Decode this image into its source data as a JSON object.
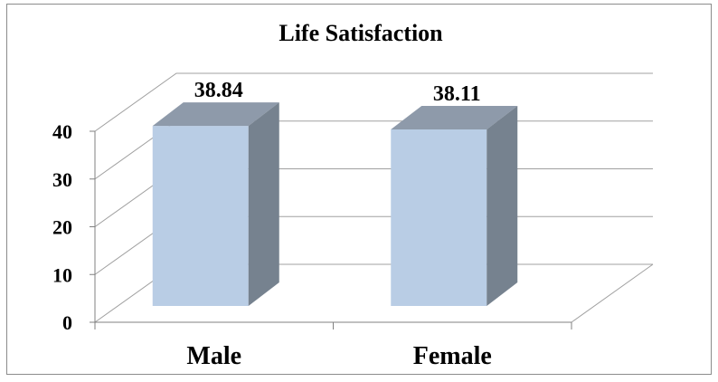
{
  "chart_data": {
    "type": "bar",
    "title": "Life Satisfaction",
    "categories": [
      "Male",
      "Female"
    ],
    "values": [
      38.84,
      38.11
    ],
    "data_labels": [
      "38.84",
      "38.11"
    ],
    "ylim": [
      0,
      40
    ],
    "yticks": [
      "0",
      "10",
      "20",
      "30",
      "40"
    ],
    "grid": true,
    "three_d": true,
    "colors": {
      "bar_front": "#b9cde5",
      "bar_top": "#8e9aaa",
      "bar_side": "#76828f",
      "grid": "#a0a0a0"
    }
  }
}
